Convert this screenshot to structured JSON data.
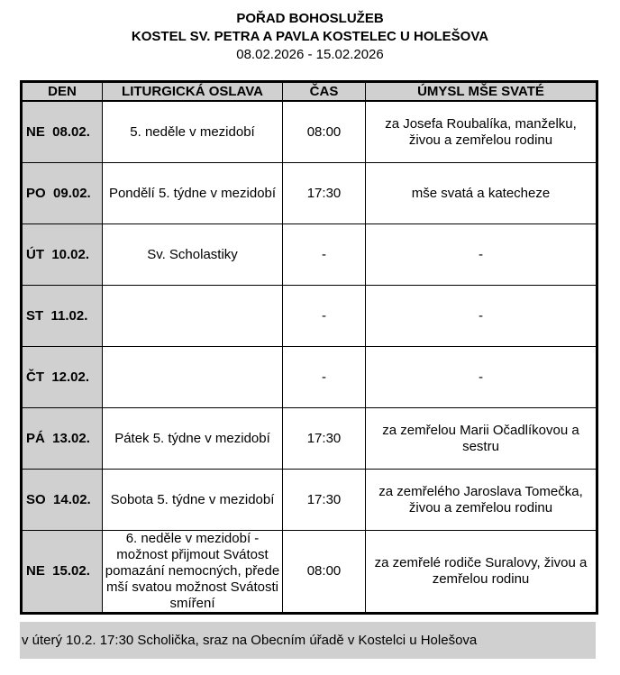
{
  "header": {
    "title": "POŘAD BOHOSLUŽEB",
    "church": "KOSTEL SV. PETRA A PAVLA KOSTELEC U HOLEŠOVA",
    "period": "08.02.2026 - 15.02.2026"
  },
  "table": {
    "columns": [
      "DEN",
      "LITURGICKÁ OSLAVA",
      "ČAS",
      "ÚMYSL MŠE SVATÉ"
    ],
    "rows": [
      {
        "day": "NE  08.02.",
        "celebration": "5. neděle v mezidobí",
        "time": "08:00",
        "intention": "za Josefa Roubalíka, manželku, živou a zemřelou rodinu"
      },
      {
        "day": "PO  09.02.",
        "celebration": "Pondělí 5. týdne v mezidobí",
        "time": "17:30",
        "intention": "mše svatá a katecheze"
      },
      {
        "day": "ÚT  10.02.",
        "celebration": "Sv. Scholastiky",
        "time": "-",
        "intention": "-"
      },
      {
        "day": "ST  11.02.",
        "celebration": "",
        "time": "-",
        "intention": "-"
      },
      {
        "day": "ČT  12.02.",
        "celebration": "",
        "time": "-",
        "intention": "-"
      },
      {
        "day": "PÁ  13.02.",
        "celebration": "Pátek 5. týdne v mezidobí",
        "time": "17:30",
        "intention": "za zemřelou Marii Očadlíkovou a sestru"
      },
      {
        "day": "SO  14.02.",
        "celebration": "Sobota 5. týdne v mezidobí",
        "time": "17:30",
        "intention": "za zemřelého Jaroslava Tomečka, živou a zemřelou rodinu"
      },
      {
        "day": "NE  15.02.",
        "celebration": "6. neděle v mezidobí - možnost přijmout Svátost pomazání nemocných, přede mší svatou možnost Svátosti smíření",
        "time": "08:00",
        "intention": "za zemřelé rodiče Suralovy, živou a zemřelou rodinu"
      }
    ]
  },
  "note": "v úterý 10.2. 17:30 Scholička, sraz na Obecním úřadě v Kostelci u Holešova"
}
